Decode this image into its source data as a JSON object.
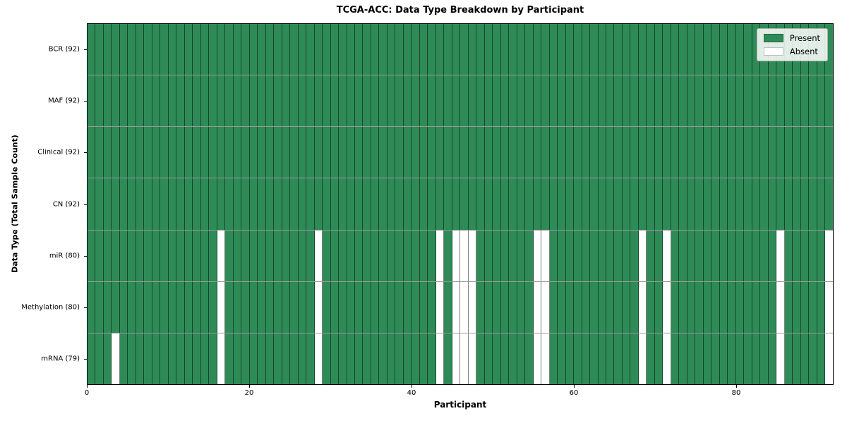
{
  "chart_data": {
    "type": "heatmap",
    "title": "TCGA-ACC: Data Type Breakdown by Participant",
    "xlabel": "Participant",
    "ylabel": "Data Type (Total Sample Count)",
    "n_participants": 92,
    "x_range": [
      0,
      92
    ],
    "x_ticks": [
      0,
      20,
      40,
      60,
      80
    ],
    "grid": false,
    "legend_position": "upper right",
    "legend_items": [
      {
        "label": "Present",
        "color": "#2e8b57"
      },
      {
        "label": "Absent",
        "color": "#ffffff"
      }
    ],
    "colors": {
      "present": "#2e8b57",
      "absent": "#ffffff",
      "cell_edge": "rgba(0,0,0,0.5)",
      "row_edge": "rgba(0,0,0,0.4)",
      "spine": "#000000"
    },
    "rows": [
      {
        "label": "BCR (92)",
        "data_type": "BCR",
        "present_count": 92,
        "absent_participants": []
      },
      {
        "label": "MAF (92)",
        "data_type": "MAF",
        "present_count": 92,
        "absent_participants": []
      },
      {
        "label": "Clinical (92)",
        "data_type": "Clinical",
        "present_count": 92,
        "absent_participants": []
      },
      {
        "label": "CN (92)",
        "data_type": "CN",
        "present_count": 92,
        "absent_participants": []
      },
      {
        "label": "miR (80)",
        "data_type": "miR",
        "present_count": 80,
        "absent_participants": [
          16,
          28,
          43,
          45,
          46,
          47,
          55,
          56,
          68,
          71,
          85,
          91
        ]
      },
      {
        "label": "Methylation (80)",
        "data_type": "Methylation",
        "present_count": 80,
        "absent_participants": [
          16,
          28,
          43,
          45,
          46,
          47,
          55,
          56,
          68,
          71,
          85,
          91
        ]
      },
      {
        "label": "mRNA (79)",
        "data_type": "mRNA",
        "present_count": 79,
        "absent_participants": [
          3,
          16,
          28,
          43,
          45,
          46,
          47,
          55,
          56,
          68,
          71,
          85,
          91
        ]
      }
    ]
  }
}
